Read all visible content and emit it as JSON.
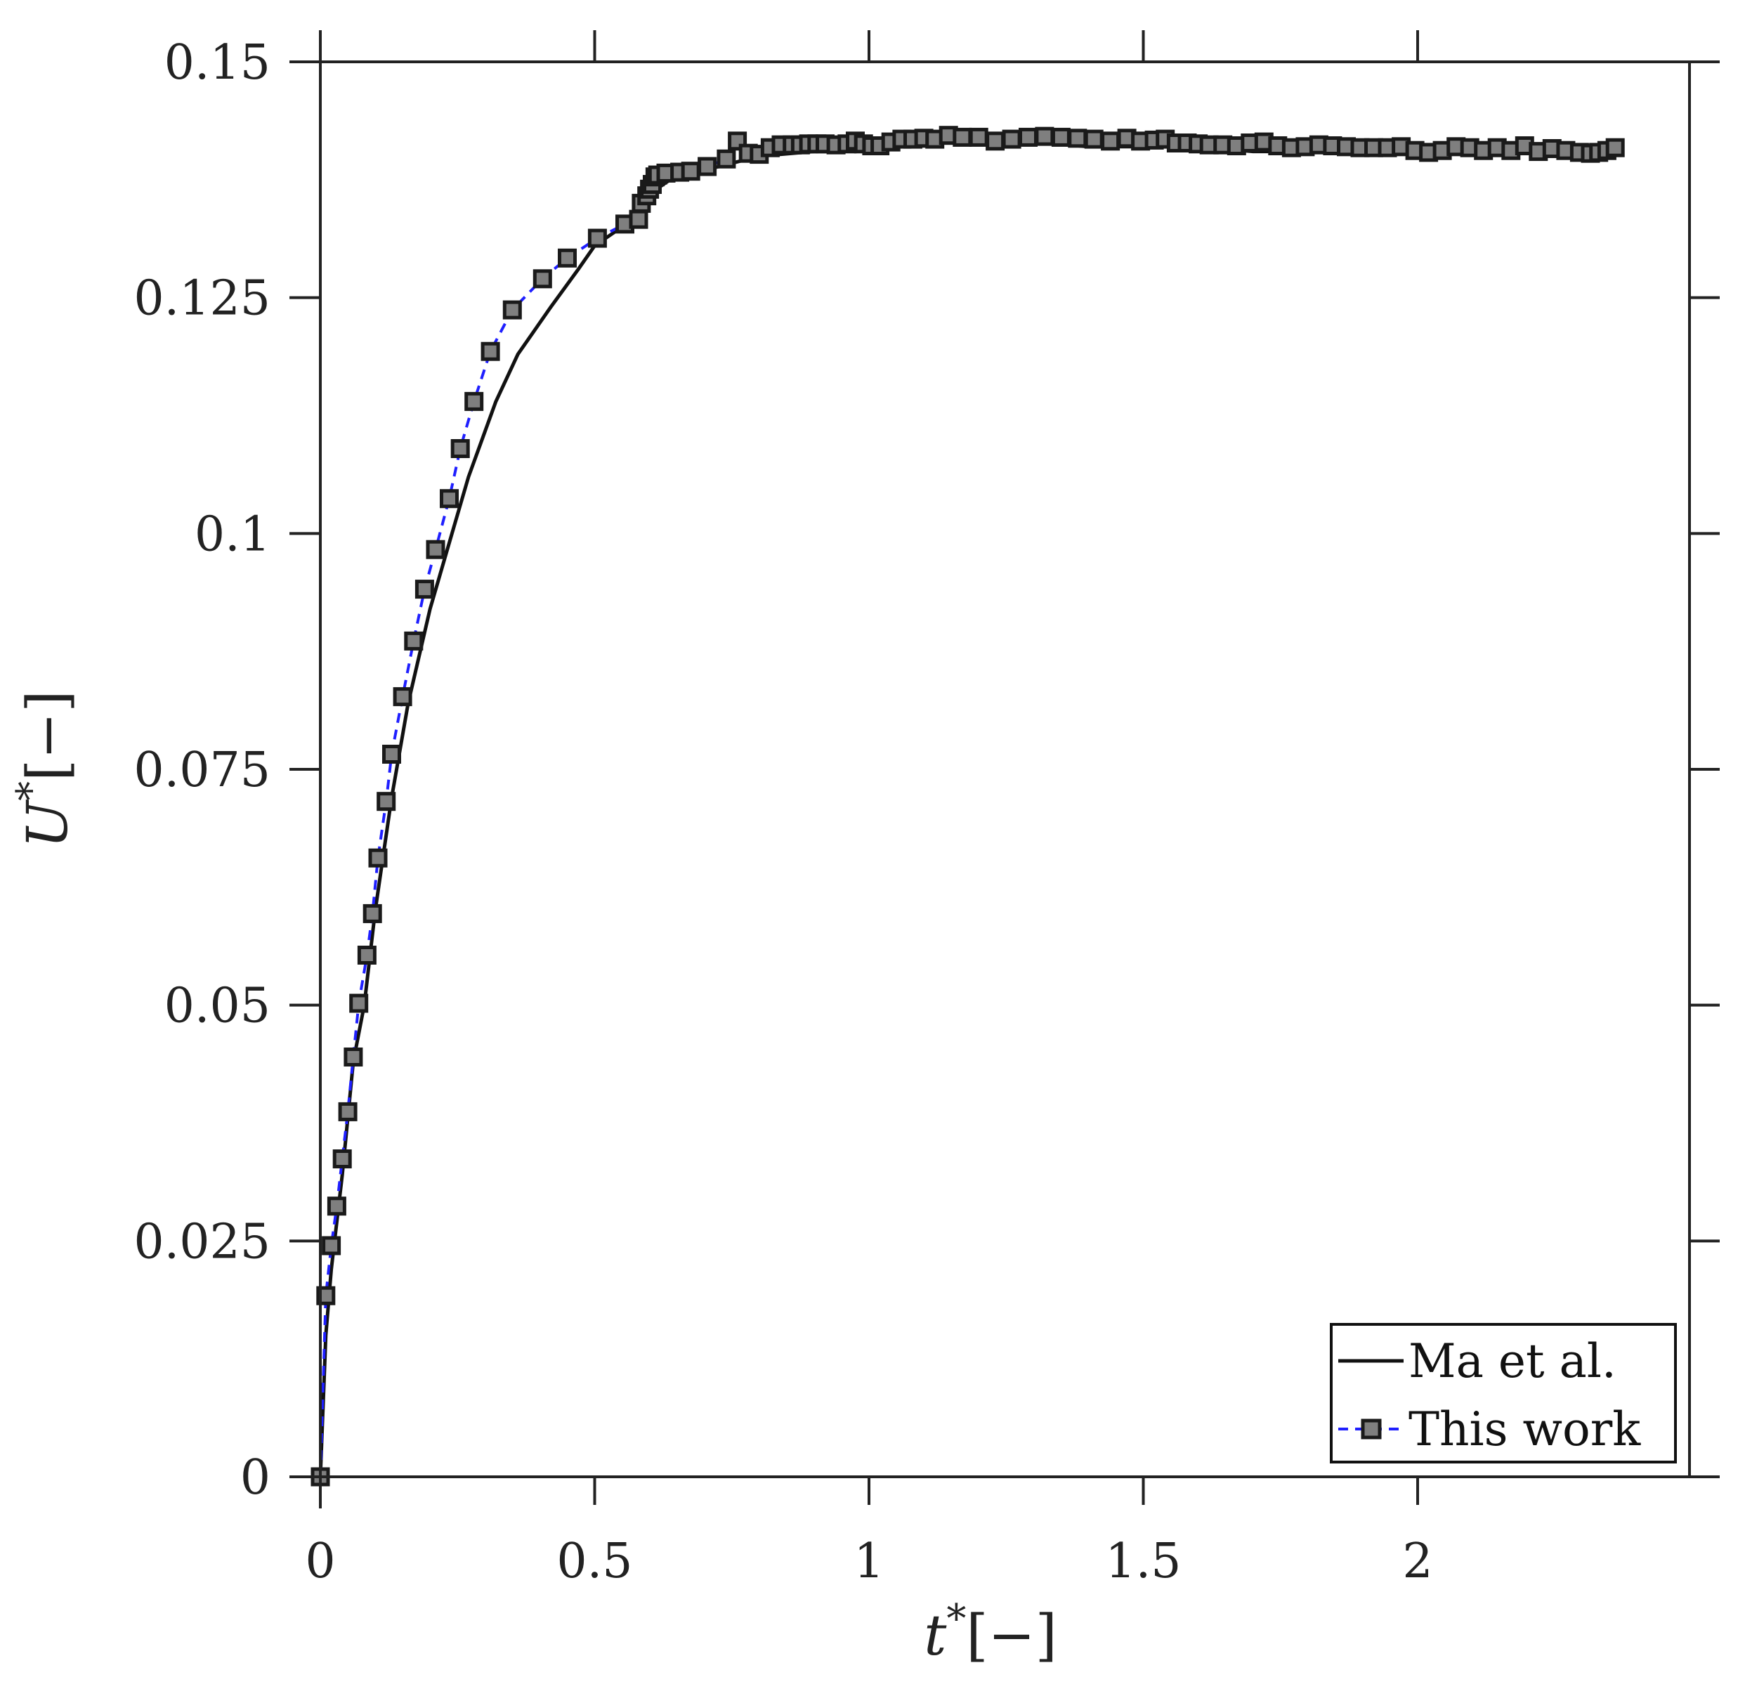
{
  "chart_data": {
    "type": "line",
    "xlabel": {
      "var": "t",
      "sup": "*",
      "unit": "[−]"
    },
    "ylabel": {
      "var": "U",
      "sup": "*",
      "unit": "[−]"
    },
    "xlim": [
      0,
      2.55
    ],
    "ylim": [
      0,
      0.15
    ],
    "xticks": [
      0,
      0.5,
      1,
      1.5,
      2
    ],
    "xtick_labels": [
      "0",
      "0.5",
      "1",
      "1.5",
      "2"
    ],
    "yticks": [
      0,
      0.025,
      0.05,
      0.075,
      0.1,
      0.125,
      0.15
    ],
    "ytick_labels": [
      "0",
      "0.025",
      "0.05",
      "0.075",
      "0.1",
      "0.125",
      "0.15"
    ],
    "legend_position": "bottom-right",
    "series": [
      {
        "name": "Ma et al.",
        "style": "solid",
        "color": "#111111",
        "marker": "none",
        "x": [
          0,
          0.01,
          0.02,
          0.04,
          0.06,
          0.08,
          0.1,
          0.13,
          0.16,
          0.2,
          0.24,
          0.27,
          0.32,
          0.36,
          0.42,
          0.47,
          0.5,
          0.55,
          0.6,
          0.65,
          0.7,
          0.8,
          0.9,
          1.0,
          1.1,
          1.2,
          1.3,
          1.4,
          1.5,
          1.6,
          1.7,
          1.8,
          1.9,
          2.0,
          2.1,
          2.2,
          2.3,
          2.37
        ],
        "y": [
          0,
          0.015,
          0.022,
          0.032,
          0.044,
          0.05,
          0.06,
          0.072,
          0.082,
          0.092,
          0.1,
          0.106,
          0.114,
          0.119,
          0.124,
          0.128,
          0.1305,
          0.1325,
          0.136,
          0.138,
          0.1385,
          0.14,
          0.1405,
          0.141,
          0.1415,
          0.1415,
          0.1415,
          0.141,
          0.141,
          0.141,
          0.1405,
          0.1405,
          0.1405,
          0.1405,
          0.1405,
          0.1405,
          0.1405,
          0.1405
        ]
      },
      {
        "name": "This work",
        "style": "dashed",
        "color": "#1f1fff",
        "marker": "square",
        "marker_fill": "#7f7f7f",
        "marker_edge": "#1a1a1a",
        "x": [
          0,
          0.01,
          0.02,
          0.03,
          0.04,
          0.05,
          0.06,
          0.07,
          0.085,
          0.095,
          0.105,
          0.12,
          0.13,
          0.15,
          0.17,
          0.19,
          0.21,
          0.235,
          0.255,
          0.28,
          0.31,
          0.35,
          0.405,
          0.45,
          0.505,
          0.555,
          0.58,
          0.585,
          0.595,
          0.6,
          0.605,
          0.61,
          0.615,
          0.63,
          0.655,
          0.675,
          0.705,
          0.74,
          0.76,
          0.78,
          0.8,
          0.82,
          0.84,
          0.86,
          0.875,
          0.89,
          0.905,
          0.92,
          0.94,
          0.96,
          0.975,
          0.99,
          1.005,
          1.02,
          1.04,
          1.06,
          1.08,
          1.1,
          1.12,
          1.145,
          1.17,
          1.2,
          1.23,
          1.26,
          1.29,
          1.32,
          1.35,
          1.38,
          1.41,
          1.44,
          1.47,
          1.495,
          1.52,
          1.54,
          1.56,
          1.58,
          1.6,
          1.62,
          1.645,
          1.67,
          1.695,
          1.72,
          1.745,
          1.77,
          1.795,
          1.82,
          1.845,
          1.87,
          1.895,
          1.92,
          1.945,
          1.97,
          1.995,
          2.02,
          2.045,
          2.07,
          2.095,
          2.12,
          2.145,
          2.17,
          2.195,
          2.22,
          2.245,
          2.27,
          2.295,
          2.315,
          2.33,
          2.345,
          2.36
        ],
        "y": [
          0,
          0.0192,
          0.0245,
          0.0287,
          0.0337,
          0.0387,
          0.0445,
          0.0502,
          0.0553,
          0.0597,
          0.0656,
          0.0716,
          0.0766,
          0.0827,
          0.0886,
          0.0941,
          0.0983,
          0.1037,
          0.109,
          0.114,
          0.1193,
          0.1237,
          0.127,
          0.1292,
          0.1313,
          0.1328,
          0.1333,
          0.135,
          0.1358,
          0.1365,
          0.137,
          0.1378,
          0.138,
          0.1382,
          0.1383,
          0.1384,
          0.1389,
          0.1397,
          0.1416,
          0.1403,
          0.1402,
          0.1409,
          0.1412,
          0.1412,
          0.1412,
          0.1413,
          0.1413,
          0.1413,
          0.1412,
          0.1413,
          0.1416,
          0.1413,
          0.1411,
          0.1411,
          0.1415,
          0.1418,
          0.1418,
          0.1419,
          0.1418,
          0.1422,
          0.142,
          0.142,
          0.1416,
          0.1418,
          0.142,
          0.1421,
          0.142,
          0.1419,
          0.1418,
          0.1416,
          0.1419,
          0.1416,
          0.1417,
          0.1418,
          0.1414,
          0.1414,
          0.1413,
          0.1412,
          0.1412,
          0.1411,
          0.1414,
          0.1415,
          0.1411,
          0.1409,
          0.141,
          0.1412,
          0.1411,
          0.141,
          0.1409,
          0.1409,
          0.1409,
          0.141,
          0.1406,
          0.1404,
          0.1406,
          0.141,
          0.1409,
          0.1406,
          0.1409,
          0.1406,
          0.1411,
          0.1405,
          0.1408,
          0.1406,
          0.1404,
          0.1403,
          0.1404,
          0.1406,
          0.1409
        ]
      }
    ]
  }
}
